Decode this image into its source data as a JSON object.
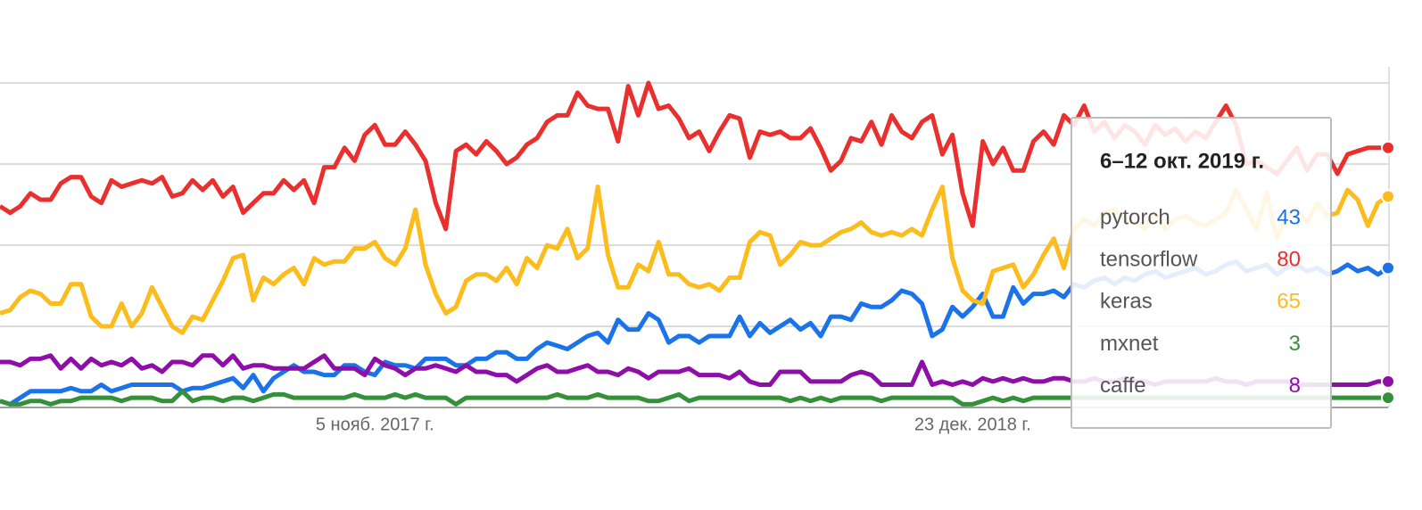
{
  "chart_data": {
    "type": "line",
    "categories": [
      null,
      null,
      null,
      null,
      null,
      null,
      null,
      null,
      null,
      null,
      null,
      null,
      null,
      null,
      null,
      null,
      null,
      null,
      null,
      null,
      null,
      null,
      null,
      null,
      null,
      null,
      null,
      null,
      null,
      null,
      null,
      null,
      null,
      null,
      null,
      null,
      null,
      "5 нояб. 2017 г.",
      null,
      null,
      null,
      null,
      null,
      null,
      null,
      null,
      null,
      null,
      null,
      null,
      null,
      null,
      null,
      null,
      null,
      null,
      null,
      null,
      null,
      null,
      null,
      null,
      null,
      null,
      null,
      null,
      null,
      null,
      null,
      null,
      null,
      null,
      null,
      null,
      null,
      null,
      null,
      null,
      null,
      null,
      null,
      null,
      null,
      null,
      null,
      null,
      null,
      null,
      null,
      null,
      null,
      null,
      null,
      null,
      null,
      null,
      "23 дек. 2018 г.",
      null,
      null,
      null,
      null,
      null,
      null,
      null,
      null,
      null,
      null,
      null,
      null,
      null,
      null,
      null,
      null,
      null,
      null,
      null,
      null,
      null,
      null,
      null,
      null,
      null,
      null,
      null,
      null,
      null,
      null,
      null,
      null,
      null,
      null,
      null,
      null,
      null,
      null,
      null,
      null,
      null
    ],
    "series": [
      {
        "name": "pytorch",
        "color": "#1a73e8",
        "values": [
          2,
          1,
          3,
          5,
          5,
          5,
          5,
          6,
          5,
          5,
          7,
          5,
          6,
          7,
          7,
          7,
          7,
          7,
          5,
          6,
          6,
          7,
          8,
          9,
          6,
          10,
          5,
          9,
          11,
          13,
          11,
          11,
          10,
          10,
          13,
          13,
          11,
          10,
          14,
          13,
          13,
          12,
          15,
          15,
          15,
          13,
          13,
          15,
          15,
          17,
          17,
          15,
          15,
          18,
          20,
          19,
          18,
          20,
          22,
          23,
          20,
          27,
          24,
          24,
          29,
          27,
          20,
          22,
          22,
          20,
          22,
          22,
          22,
          28,
          22,
          26,
          23,
          25,
          27,
          24,
          26,
          22,
          28,
          28,
          27,
          32,
          31,
          31,
          33,
          36,
          35,
          32,
          22,
          24,
          31,
          28,
          31,
          35,
          28,
          28,
          37,
          32,
          35,
          35,
          36,
          34,
          38,
          37,
          39,
          40,
          38,
          40,
          39,
          41,
          42,
          40,
          41,
          42,
          43,
          41,
          42,
          44,
          45,
          42,
          43,
          44,
          41,
          43,
          44,
          42,
          43,
          41,
          42,
          44,
          42,
          43,
          41,
          43
        ]
      },
      {
        "name": "tensorflow",
        "color": "#ea2f2f",
        "values": [
          62,
          60,
          62,
          66,
          64,
          64,
          69,
          71,
          71,
          65,
          63,
          70,
          68,
          69,
          70,
          69,
          71,
          65,
          66,
          70,
          67,
          70,
          65,
          68,
          60,
          63,
          66,
          66,
          70,
          67,
          70,
          63,
          74,
          74,
          80,
          76,
          84,
          87,
          81,
          81,
          85,
          81,
          76,
          63,
          55,
          79,
          81,
          78,
          82,
          79,
          75,
          77,
          81,
          83,
          88,
          90,
          90,
          97,
          93,
          92,
          92,
          82,
          99,
          90,
          100,
          92,
          93,
          89,
          83,
          85,
          79,
          85,
          90,
          89,
          77,
          85,
          84,
          85,
          83,
          83,
          86,
          80,
          73,
          76,
          83,
          82,
          88,
          81,
          90,
          85,
          83,
          88,
          90,
          78,
          84,
          66,
          56,
          82,
          75,
          80,
          73,
          73,
          82,
          85,
          81,
          90,
          87,
          93,
          85,
          88,
          83,
          87,
          85,
          81,
          87,
          84,
          86,
          82,
          85,
          83,
          88,
          93,
          87,
          75,
          76,
          74,
          72,
          76,
          80,
          73,
          78,
          78,
          72,
          78,
          79,
          80,
          80,
          80
        ]
      },
      {
        "name": "keras",
        "color": "#fbbc1c",
        "values": [
          29,
          30,
          34,
          36,
          35,
          32,
          32,
          38,
          38,
          28,
          25,
          25,
          32,
          25,
          29,
          37,
          31,
          25,
          23,
          28,
          27,
          33,
          39,
          46,
          47,
          33,
          40,
          38,
          41,
          43,
          38,
          46,
          44,
          45,
          45,
          49,
          49,
          51,
          46,
          44,
          49,
          61,
          44,
          35,
          29,
          31,
          39,
          41,
          41,
          39,
          43,
          38,
          46,
          43,
          50,
          49,
          55,
          46,
          49,
          68,
          47,
          37,
          37,
          44,
          42,
          51,
          41,
          41,
          38,
          37,
          38,
          36,
          40,
          40,
          51,
          54,
          53,
          44,
          47,
          51,
          50,
          50,
          52,
          54,
          55,
          57,
          54,
          53,
          54,
          53,
          55,
          53,
          61,
          68,
          46,
          36,
          33,
          32,
          42,
          43,
          44,
          37,
          41,
          47,
          52,
          43,
          55,
          58,
          56,
          60,
          61,
          58,
          57,
          55,
          60,
          55,
          58,
          59,
          57,
          56,
          58,
          60,
          67,
          61,
          55,
          66,
          52,
          59,
          61,
          57,
          63,
          59,
          60,
          67,
          64,
          56,
          63,
          65
        ]
      },
      {
        "name": "mxnet",
        "color": "#34913a",
        "values": [
          2,
          1,
          1,
          2,
          2,
          1,
          2,
          2,
          3,
          3,
          3,
          3,
          2,
          3,
          3,
          3,
          2,
          2,
          5,
          2,
          3,
          3,
          2,
          3,
          3,
          2,
          3,
          4,
          4,
          3,
          3,
          3,
          3,
          3,
          3,
          4,
          3,
          3,
          3,
          4,
          3,
          4,
          3,
          3,
          3,
          1,
          3,
          3,
          3,
          3,
          3,
          3,
          3,
          3,
          3,
          4,
          3,
          3,
          3,
          4,
          3,
          3,
          3,
          3,
          2,
          2,
          3,
          4,
          2,
          3,
          3,
          3,
          3,
          3,
          3,
          3,
          3,
          3,
          2,
          3,
          2,
          3,
          2,
          3,
          3,
          3,
          3,
          2,
          3,
          3,
          3,
          3,
          3,
          3,
          3,
          1,
          1,
          2,
          3,
          2,
          3,
          2,
          3,
          3,
          3,
          3,
          3,
          3,
          3,
          3,
          3,
          3,
          3,
          3,
          3,
          3,
          3,
          3,
          3,
          3,
          3,
          3,
          3,
          3,
          3,
          3,
          3,
          3,
          3,
          3,
          3,
          3,
          3,
          3,
          3,
          3,
          3,
          3
        ]
      },
      {
        "name": "caffe",
        "color": "#8e0ea8",
        "values": [
          14,
          14,
          13,
          15,
          15,
          16,
          12,
          15,
          12,
          15,
          13,
          14,
          13,
          15,
          12,
          13,
          11,
          14,
          14,
          13,
          16,
          16,
          13,
          16,
          12,
          13,
          13,
          12,
          12,
          12,
          12,
          14,
          16,
          12,
          12,
          12,
          10,
          15,
          13,
          12,
          10,
          12,
          12,
          13,
          12,
          11,
          13,
          11,
          11,
          10,
          10,
          8,
          10,
          12,
          13,
          11,
          11,
          12,
          13,
          11,
          11,
          10,
          12,
          11,
          9,
          11,
          11,
          11,
          12,
          10,
          10,
          10,
          9,
          11,
          8,
          7,
          7,
          11,
          11,
          11,
          8,
          8,
          8,
          8,
          10,
          11,
          10,
          7,
          7,
          7,
          7,
          14,
          7,
          8,
          7,
          8,
          7,
          9,
          8,
          9,
          8,
          9,
          8,
          8,
          9,
          9,
          8,
          8,
          9,
          8,
          8,
          9,
          8,
          8,
          7,
          8,
          8,
          8,
          8,
          8,
          9,
          8,
          8,
          7,
          8,
          8,
          8,
          8,
          7,
          7,
          7,
          7,
          7,
          7,
          7,
          7,
          8,
          8
        ]
      }
    ],
    "ylim": [
      0,
      100
    ],
    "yticks": [
      0,
      25,
      50,
      75,
      100
    ],
    "grid": true,
    "tooltip": {
      "title": "6–12 окт. 2019 г."
    }
  }
}
